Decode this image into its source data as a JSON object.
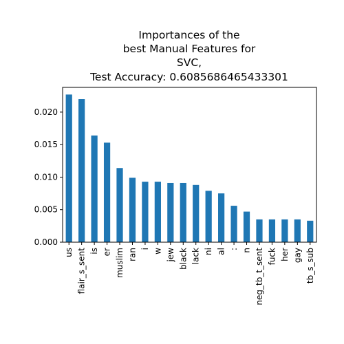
{
  "chart_data": {
    "type": "bar",
    "title_lines": [
      "Importances of the",
      "best Manual Features for",
      "SVC,",
      "Test Accuracy: 0.6085686465433301"
    ],
    "categories": [
      "us",
      "flair_s_sent",
      "is",
      "er",
      "muslim",
      "ran",
      "i",
      "w",
      "jew",
      "black",
      "lack",
      "ni",
      "al",
      ":",
      "n",
      "neg_tb_t_sent",
      "fuck",
      "her",
      "gay",
      "tb_s_sub"
    ],
    "values": [
      0.0227,
      0.022,
      0.0164,
      0.0153,
      0.0114,
      0.0099,
      0.0093,
      0.0093,
      0.0091,
      0.0091,
      0.0088,
      0.0079,
      0.0075,
      0.0056,
      0.0047,
      0.0035,
      0.0035,
      0.0035,
      0.0035,
      0.0033
    ],
    "yticks": [
      "0.000",
      "0.005",
      "0.010",
      "0.015",
      "0.020"
    ],
    "ylim": [
      0,
      0.0238
    ],
    "bar_color": "#1f77b4",
    "grid": false,
    "legend": "none"
  }
}
